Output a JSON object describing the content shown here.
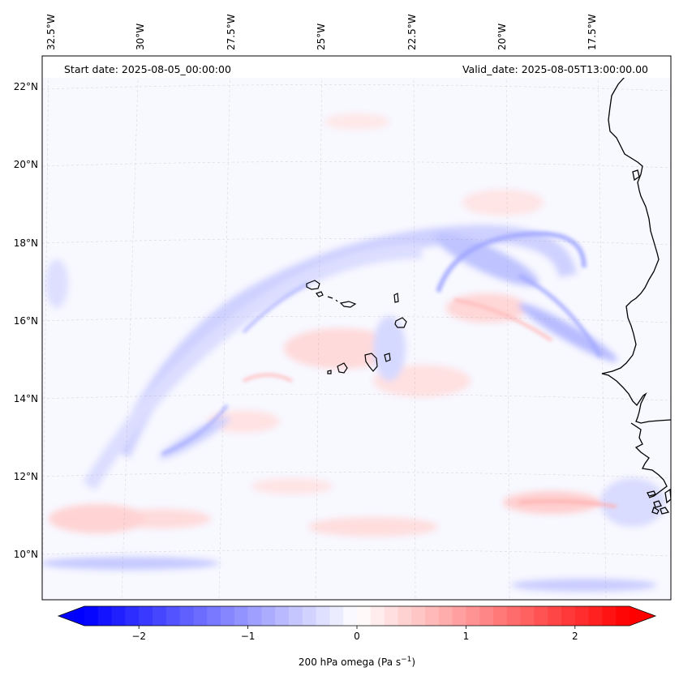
{
  "header": {
    "start_date": "Start date: 2025-08-05_00:00:00",
    "valid_date": "Valid_date: 2025-08-05T13:00:00.00"
  },
  "longitude_labels": [
    "32.5°W",
    "30°W",
    "27.5°W",
    "25°W",
    "22.5°W",
    "20°W",
    "17.5°W"
  ],
  "latitude_labels": [
    "22°N",
    "20°N",
    "18°N",
    "16°N",
    "14°N",
    "12°N",
    "10°N"
  ],
  "colorbar": {
    "label_text": "200 hPa omega (Pa s",
    "label_sup": "−1",
    "label_close": ")",
    "ticks": [
      "−2",
      "−1",
      "0",
      "1",
      "2"
    ],
    "tick_values": [
      -2,
      -1,
      0,
      1,
      2
    ],
    "range": [
      -2.5,
      2.5
    ],
    "colormap": "bwr",
    "negative_color": "#0000ff",
    "positive_color": "#ff0000",
    "extend": "both"
  },
  "map": {
    "field": "200 hPa omega",
    "gridlines": true
  }
}
